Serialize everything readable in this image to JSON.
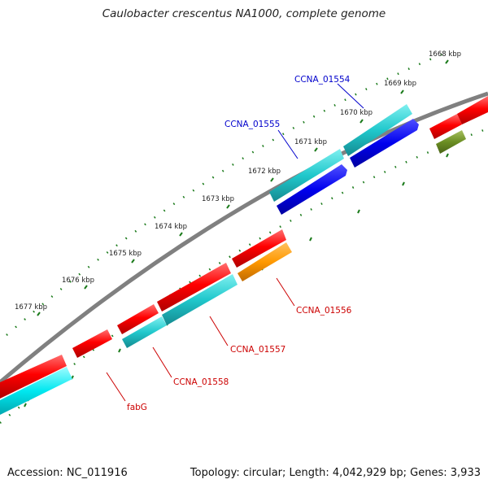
{
  "title": "Caulobacter crescentus NA1000, complete genome",
  "accession": "Accession: NC_011916",
  "summary": "Topology: circular; Length: 4,042,929 bp; Genes: 3,933",
  "colors": {
    "backbone": "#808080",
    "tick": "#1a7a1a",
    "forward_label": "#0000cc",
    "reverse_label": "#cc0000"
  },
  "kbp_labels": [
    "1668 kbp",
    "1669 kbp",
    "1670 kbp",
    "1671 kbp",
    "1672 kbp",
    "1673 kbp",
    "1674 kbp",
    "1675 kbp",
    "1676 kbp",
    "1677 kbp"
  ],
  "gene_labels": [
    {
      "name": "CCNA_01554",
      "strand": "forward"
    },
    {
      "name": "CCNA_01555",
      "strand": "forward"
    },
    {
      "name": "CCNA_01556",
      "strand": "reverse"
    },
    {
      "name": "CCNA_01557",
      "strand": "reverse"
    },
    {
      "name": "CCNA_01558",
      "strand": "reverse"
    },
    {
      "name": "fabG",
      "strand": "reverse"
    }
  ]
}
